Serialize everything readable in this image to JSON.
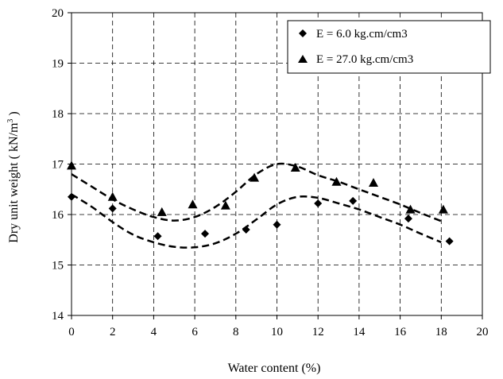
{
  "chart_data": {
    "type": "scatter",
    "title": "",
    "xlabel": "Water content (%)",
    "ylabel_main": "Dry unit weight  ( kN/m",
    "ylabel_sup": "3",
    "ylabel_end": " )",
    "xlim": [
      0,
      20
    ],
    "ylim": [
      14,
      20
    ],
    "x_ticks": [
      0,
      2,
      4,
      6,
      8,
      10,
      12,
      14,
      16,
      18,
      20
    ],
    "y_ticks": [
      14,
      15,
      16,
      17,
      18,
      19,
      20
    ],
    "grid": true,
    "legend_position": "top-right",
    "series": [
      {
        "name": "E = 6.0 kg.cm/cm3",
        "marker": "diamond",
        "color": "#000000",
        "points": [
          [
            0,
            16.35
          ],
          [
            2,
            16.12
          ],
          [
            4.2,
            15.57
          ],
          [
            6.5,
            15.62
          ],
          [
            8.5,
            15.7
          ],
          [
            10,
            15.8
          ],
          [
            12,
            16.22
          ],
          [
            13.7,
            16.27
          ],
          [
            16.4,
            15.92
          ],
          [
            18.4,
            15.47
          ]
        ],
        "trend": [
          [
            0,
            16.4
          ],
          [
            1,
            16.15
          ],
          [
            2,
            15.85
          ],
          [
            3,
            15.6
          ],
          [
            4,
            15.45
          ],
          [
            5,
            15.36
          ],
          [
            6,
            15.35
          ],
          [
            7,
            15.43
          ],
          [
            8,
            15.62
          ],
          [
            9,
            15.9
          ],
          [
            10,
            16.2
          ],
          [
            11,
            16.35
          ],
          [
            12,
            16.33
          ],
          [
            13,
            16.22
          ],
          [
            14,
            16.1
          ],
          [
            15,
            15.95
          ],
          [
            16,
            15.8
          ],
          [
            17,
            15.62
          ],
          [
            18,
            15.45
          ]
        ]
      },
      {
        "name": "E = 27.0 kg.cm/cm3",
        "marker": "triangle",
        "color": "#000000",
        "points": [
          [
            0,
            16.97
          ],
          [
            2,
            16.35
          ],
          [
            4.4,
            16.05
          ],
          [
            5.9,
            16.2
          ],
          [
            7.5,
            16.18
          ],
          [
            8.9,
            16.73
          ],
          [
            10.9,
            16.93
          ],
          [
            12.9,
            16.65
          ],
          [
            14.7,
            16.63
          ],
          [
            16.5,
            16.1
          ],
          [
            18.1,
            16.1
          ]
        ],
        "trend": [
          [
            0,
            16.8
          ],
          [
            1,
            16.55
          ],
          [
            2,
            16.3
          ],
          [
            3,
            16.1
          ],
          [
            4,
            15.95
          ],
          [
            5,
            15.88
          ],
          [
            6,
            15.95
          ],
          [
            7,
            16.15
          ],
          [
            8,
            16.45
          ],
          [
            9,
            16.8
          ],
          [
            10,
            17.0
          ],
          [
            11,
            16.95
          ],
          [
            12,
            16.78
          ],
          [
            13,
            16.65
          ],
          [
            14,
            16.5
          ],
          [
            15,
            16.35
          ],
          [
            16,
            16.2
          ],
          [
            17,
            16.03
          ],
          [
            18,
            15.87
          ]
        ]
      }
    ]
  }
}
